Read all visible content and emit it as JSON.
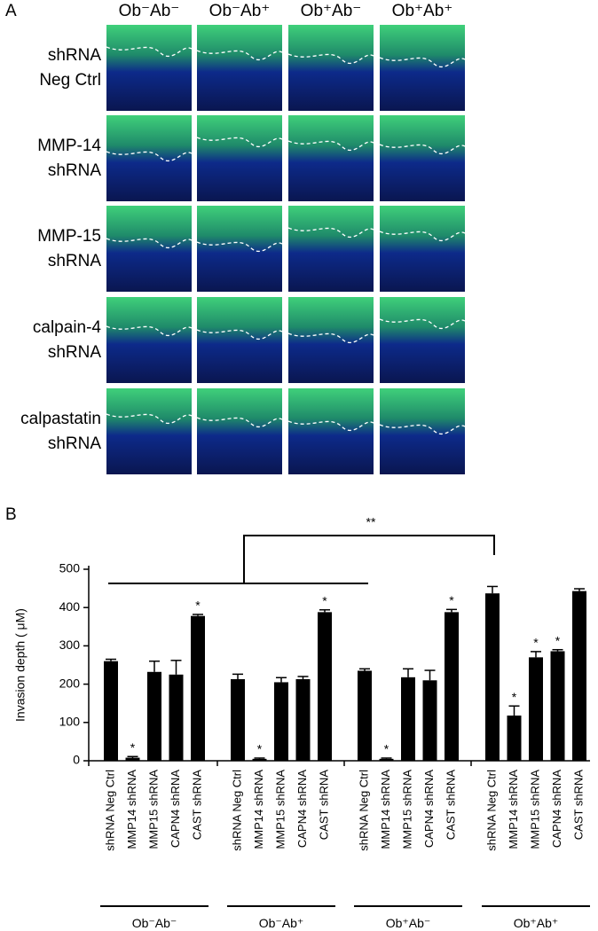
{
  "panel_a": {
    "label": "A",
    "columns": [
      "Ob⁻Ab⁻",
      "Ob⁻Ab⁺",
      "Ob⁺Ab⁻",
      "Ob⁺Ab⁺"
    ],
    "rows": [
      [
        "shRNA",
        "Neg Ctrl"
      ],
      [
        "MMP-14",
        "shRNA"
      ],
      [
        "MMP-15",
        "shRNA"
      ],
      [
        "calpain-4",
        "shRNA"
      ],
      [
        "calpastatin",
        "shRNA"
      ]
    ]
  },
  "chart_data": {
    "type": "bar",
    "panel_label": "B",
    "y_label": "Invasion depth ( μM)",
    "ylim": [
      0,
      500
    ],
    "yticks": [
      0,
      100,
      200,
      300,
      400,
      500
    ],
    "color": "#000000",
    "significance_label": "**",
    "groups": [
      {
        "label": "Ob⁻Ab⁻",
        "categories": [
          "shRNA Neg Ctrl",
          "MMP14 shRNA",
          "MMP15 shRNA",
          "CAPN4 shRNA",
          "CAST shRNA"
        ],
        "values": [
          260,
          8,
          232,
          225,
          378
        ],
        "errors": [
          5,
          3,
          28,
          37,
          4
        ],
        "markers": [
          null,
          "*",
          null,
          null,
          "*"
        ]
      },
      {
        "label": "Ob⁻Ab⁺",
        "categories": [
          "shRNA Neg Ctrl",
          "MMP14 shRNA",
          "MMP15 shRNA",
          "CAPN4 shRNA",
          "CAST shRNA"
        ],
        "values": [
          213,
          5,
          205,
          213,
          388
        ],
        "errors": [
          13,
          2,
          12,
          7,
          6
        ],
        "markers": [
          null,
          "*",
          null,
          null,
          "*"
        ]
      },
      {
        "label": "Ob⁺Ab⁻",
        "categories": [
          "shRNA Neg Ctrl",
          "MMP14 shRNA",
          "MMP15 shRNA",
          "CAPN4 shRNA",
          "CAST shRNA"
        ],
        "values": [
          235,
          5,
          218,
          210,
          388
        ],
        "errors": [
          5,
          2,
          22,
          26,
          7
        ],
        "markers": [
          null,
          "*",
          null,
          null,
          "*"
        ]
      },
      {
        "label": "Ob⁺Ab⁺",
        "categories": [
          "shRNA Neg Ctrl",
          "MMP14 shRNA",
          "MMP15 shRNA",
          "CAPN4 shRNA",
          "CAST shRNA"
        ],
        "values": [
          437,
          118,
          270,
          286,
          443
        ],
        "errors": [
          18,
          25,
          15,
          4,
          6
        ],
        "markers": [
          null,
          "*",
          "*",
          "*",
          null
        ]
      }
    ]
  }
}
